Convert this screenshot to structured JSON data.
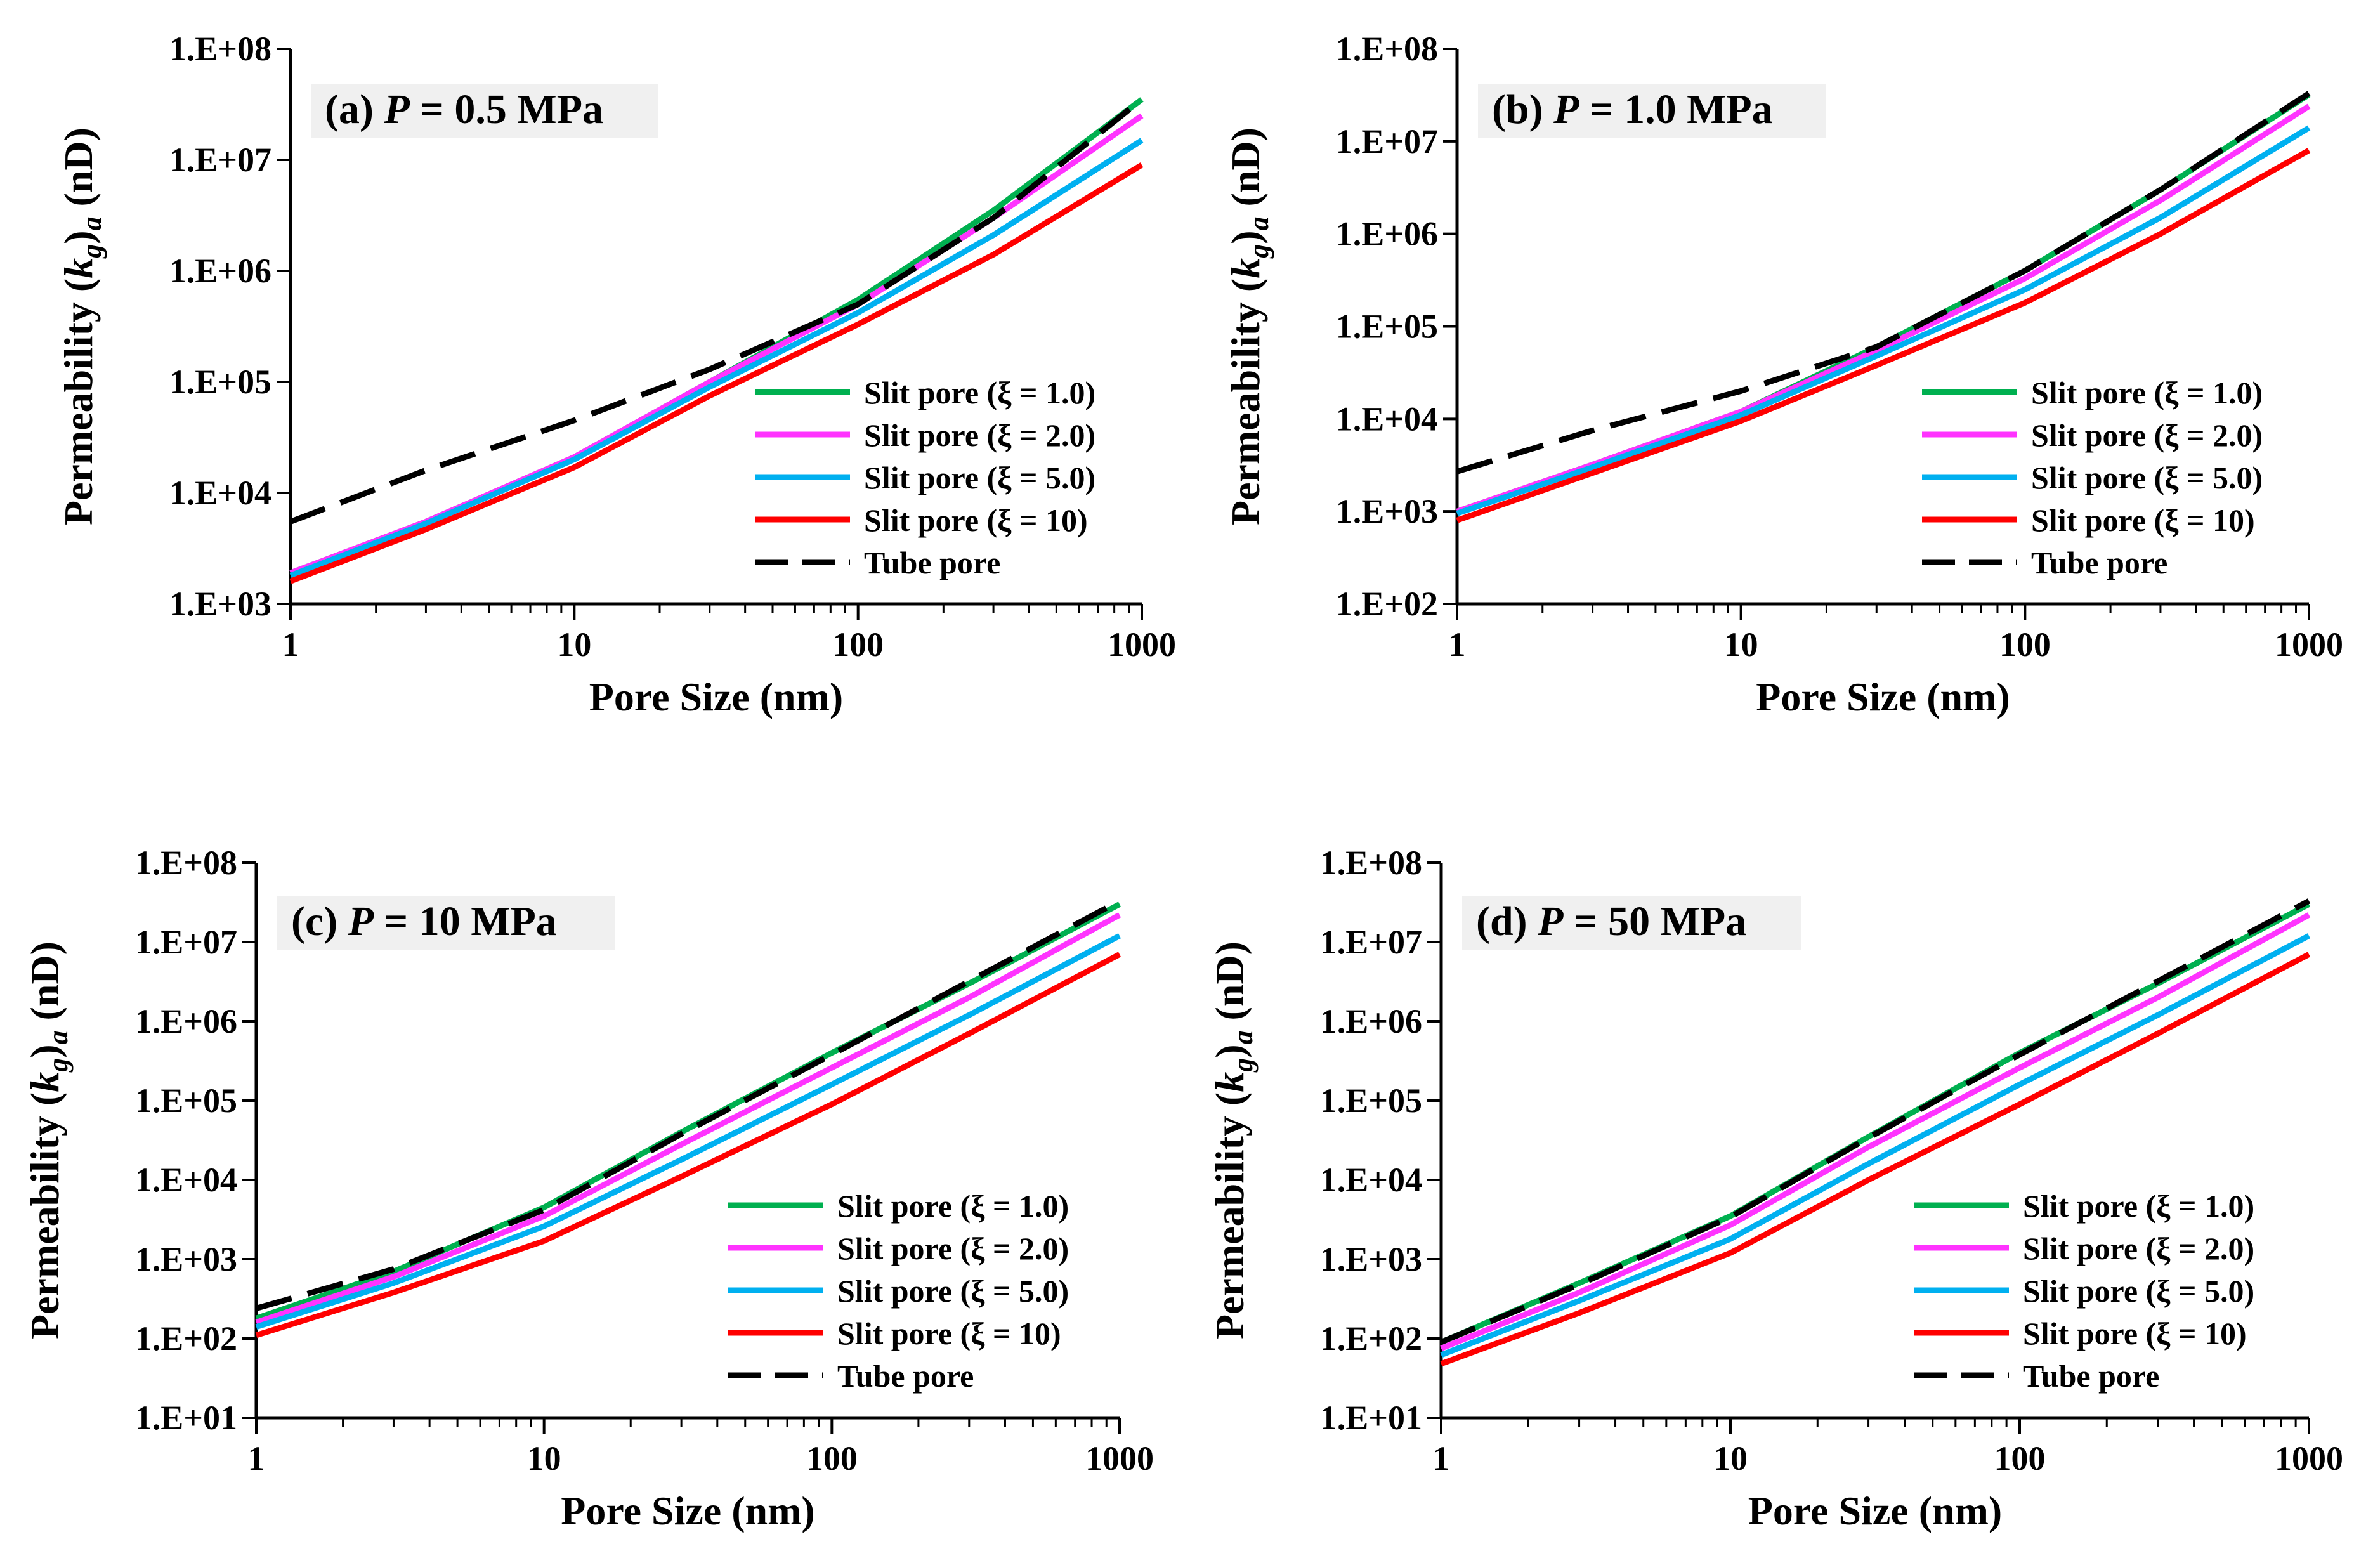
{
  "figure": {
    "colors": {
      "slit_1": "#00B050",
      "slit_2": "#FF33FF",
      "slit_5": "#00B0F0",
      "slit_10": "#FF0000",
      "tube": "#000000",
      "label_bg": "#F0F0F0"
    }
  },
  "chart_data": [
    {
      "type": "line",
      "panel_label": {
        "prefix": "(a)",
        "var": "P",
        "eq": " = 0.5 MPa"
      },
      "xlabel": "Pore Size (nm)",
      "ylabel": {
        "main": "Permeability (",
        "k": "k",
        "g": "g",
        "a": "a",
        "unit": " (nD)"
      },
      "x_scale": "log",
      "y_scale": "log",
      "xlim": [
        1,
        1000
      ],
      "ylim": [
        1000,
        100000000
      ],
      "x_ticks": [
        "1",
        "10",
        "100",
        "1000"
      ],
      "y_ticks": [
        "1.E+03",
        "1.E+04",
        "1.E+05",
        "1.E+06",
        "1.E+07",
        "1.E+08"
      ],
      "legend_position": "lower-right",
      "x": [
        1,
        3,
        10,
        30,
        100,
        300,
        1000
      ],
      "series": [
        {
          "name": "Slit pore (ξ = 1.0)",
          "style": "solid",
          "color_key": "slit_1",
          "values": [
            1900,
            5500,
            21000,
            100000,
            550000,
            3500000,
            35000000
          ]
        },
        {
          "name": "Slit pore (ξ = 2.0)",
          "style": "solid",
          "color_key": "slit_2",
          "values": [
            1900,
            5500,
            21000,
            100000,
            500000,
            3000000,
            25000000
          ]
        },
        {
          "name": "Slit pore (ξ = 5.0)",
          "style": "solid",
          "color_key": "slit_5",
          "values": [
            1800,
            5300,
            20000,
            90000,
            420000,
            2100000,
            15000000
          ]
        },
        {
          "name": "Slit pore (ξ = 10)",
          "style": "solid",
          "color_key": "slit_10",
          "values": [
            1600,
            4700,
            17000,
            75000,
            330000,
            1400000,
            9000000
          ]
        },
        {
          "name": "Tube pore",
          "style": "dashed",
          "color_key": "tube",
          "values": [
            5500,
            16000,
            45000,
            130000,
            500000,
            3000000,
            35000000
          ]
        }
      ]
    },
    {
      "type": "line",
      "panel_label": {
        "prefix": "(b)",
        "var": "P",
        "eq": " = 1.0 MPa"
      },
      "xlabel": "Pore Size (nm)",
      "ylabel": {
        "main": "Permeability (",
        "k": "k",
        "g": "g",
        "a": "a",
        "unit": " (nD)"
      },
      "x_scale": "log",
      "y_scale": "log",
      "xlim": [
        1,
        1000
      ],
      "ylim": [
        100,
        100000000
      ],
      "x_ticks": [
        "1",
        "10",
        "100",
        "1000"
      ],
      "y_ticks": [
        "1.E+02",
        "1.E+03",
        "1.E+04",
        "1.E+05",
        "1.E+06",
        "1.E+07",
        "1.E+08"
      ],
      "legend_position": "lower-right",
      "x": [
        1,
        3,
        10,
        30,
        100,
        300,
        1000
      ],
      "series": [
        {
          "name": "Slit pore (ξ = 1.0)",
          "style": "solid",
          "color_key": "slit_1",
          "values": [
            1000,
            3200,
            12000,
            60000,
            400000,
            3000000,
            32000000
          ]
        },
        {
          "name": "Slit pore (ξ = 2.0)",
          "style": "solid",
          "color_key": "slit_2",
          "values": [
            1000,
            3200,
            12000,
            55000,
            330000,
            2300000,
            24000000
          ]
        },
        {
          "name": "Slit pore (ξ = 5.0)",
          "style": "solid",
          "color_key": "slit_5",
          "values": [
            950,
            3000,
            11000,
            48000,
            250000,
            1500000,
            14000000
          ]
        },
        {
          "name": "Slit pore (ξ = 10)",
          "style": "solid",
          "color_key": "slit_10",
          "values": [
            800,
            2600,
            9500,
            38000,
            180000,
            1000000,
            8000000
          ]
        },
        {
          "name": "Tube pore",
          "style": "dashed",
          "color_key": "tube",
          "values": [
            2700,
            7500,
            20000,
            60000,
            400000,
            3000000,
            33000000
          ]
        }
      ]
    },
    {
      "type": "line",
      "panel_label": {
        "prefix": "(c)",
        "var": "P",
        "eq": " = 10 MPa"
      },
      "xlabel": "Pore Size (nm)",
      "ylabel": {
        "main": "Permeability (",
        "k": "k",
        "g": "g",
        "a": "a",
        "unit": " (nD)"
      },
      "x_scale": "log",
      "y_scale": "log",
      "xlim": [
        1,
        1000
      ],
      "ylim": [
        10,
        100000000
      ],
      "x_ticks": [
        "1",
        "10",
        "100",
        "1000"
      ],
      "y_ticks": [
        "1.E+01",
        "1.E+02",
        "1.E+03",
        "1.E+04",
        "1.E+05",
        "1.E+06",
        "1.E+07",
        "1.E+08"
      ],
      "legend_position": "lower-right",
      "x": [
        1,
        3,
        10,
        30,
        100,
        300,
        1000
      ],
      "series": [
        {
          "name": "Slit pore (ξ = 1.0)",
          "style": "solid",
          "color_key": "slit_1",
          "values": [
            180,
            700,
            4500,
            40000,
            400000,
            3000000,
            30000000
          ]
        },
        {
          "name": "Slit pore (ξ = 2.0)",
          "style": "solid",
          "color_key": "slit_2",
          "values": [
            160,
            600,
            3500,
            28000,
            260000,
            2000000,
            22000000
          ]
        },
        {
          "name": "Slit pore (ξ = 5.0)",
          "style": "solid",
          "color_key": "slit_5",
          "values": [
            140,
            500,
            2600,
            18000,
            160000,
            1200000,
            12000000
          ]
        },
        {
          "name": "Slit pore (ξ = 10)",
          "style": "solid",
          "color_key": "slit_10",
          "values": [
            110,
            380,
            1700,
            11000,
            90000,
            700000,
            7000000
          ]
        },
        {
          "name": "Tube pore",
          "style": "dashed",
          "color_key": "tube",
          "values": [
            240,
            750,
            4200,
            38000,
            380000,
            3200000,
            33000000
          ]
        }
      ]
    },
    {
      "type": "line",
      "panel_label": {
        "prefix": "(d)",
        "var": "P",
        "eq": " = 50 MPa"
      },
      "xlabel": "Pore Size (nm)",
      "ylabel": {
        "main": "Permeability (",
        "k": "k",
        "g": "g",
        "a": "a",
        "unit": " (nD)"
      },
      "x_scale": "log",
      "y_scale": "log",
      "xlim": [
        1,
        1000
      ],
      "ylim": [
        10,
        100000000
      ],
      "x_ticks": [
        "1",
        "10",
        "100",
        "1000"
      ],
      "y_ticks": [
        "1.E+01",
        "1.E+02",
        "1.E+03",
        "1.E+04",
        "1.E+05",
        "1.E+06",
        "1.E+07",
        "1.E+08"
      ],
      "legend_position": "lower-right",
      "x": [
        1,
        3,
        10,
        30,
        100,
        300,
        1000
      ],
      "series": [
        {
          "name": "Slit pore (ξ = 1.0)",
          "style": "solid",
          "color_key": "slit_1",
          "values": [
            90,
            500,
            3500,
            35000,
            400000,
            3000000,
            30000000
          ]
        },
        {
          "name": "Slit pore (ξ = 2.0)",
          "style": "solid",
          "color_key": "slit_2",
          "values": [
            75,
            380,
            2700,
            26000,
            260000,
            2000000,
            22000000
          ]
        },
        {
          "name": "Slit pore (ξ = 5.0)",
          "style": "solid",
          "color_key": "slit_5",
          "values": [
            62,
            300,
            1800,
            16000,
            160000,
            1200000,
            12000000
          ]
        },
        {
          "name": "Slit pore (ξ = 10)",
          "style": "solid",
          "color_key": "slit_10",
          "values": [
            48,
            210,
            1200,
            10000,
            90000,
            700000,
            7000000
          ]
        },
        {
          "name": "Tube pore",
          "style": "dashed",
          "color_key": "tube",
          "values": [
            90,
            480,
            3400,
            34000,
            380000,
            3200000,
            33000000
          ]
        }
      ]
    }
  ]
}
